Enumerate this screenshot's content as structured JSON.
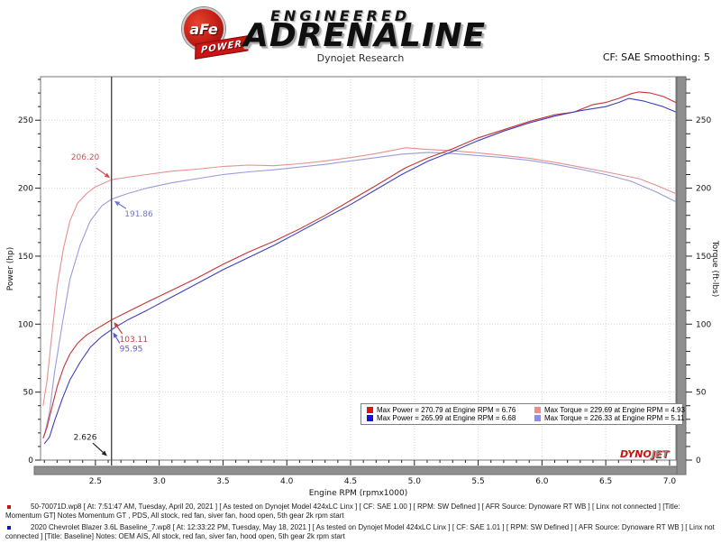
{
  "header": {
    "badge_top": "aFe",
    "badge_banner": "POWER",
    "brand_line1": "ENGINEERED",
    "brand_line2": "ADRENALINE",
    "subtitle": "Dynojet Research",
    "smoothing_label": "CF: SAE Smoothing: 5"
  },
  "chart_data": {
    "type": "line",
    "xlabel": "Engine RPM (rpmx1000)",
    "ylabel_left": "Power (hp)",
    "ylabel_right": "Torque (ft-lbs)",
    "xlim": [
      2.07,
      7.05
    ],
    "ylim": [
      0,
      282
    ],
    "x_major_ticks": [
      2.5,
      3.0,
      3.5,
      4.0,
      4.5,
      5.0,
      5.5,
      6.0,
      6.5,
      7.0
    ],
    "x_minor_step": 0.1,
    "y_major_ticks": [
      0,
      50,
      100,
      150,
      200,
      250
    ],
    "y_minor_step": 10,
    "grid": "dotted",
    "legend_position": "bottom-center-inside",
    "cursor_rpm": 2.626,
    "cursor_values": {
      "power_red": 103.11,
      "power_blue": 95.95,
      "torque_red": 206.2,
      "torque_blue": 191.86
    },
    "series": [
      {
        "name": "torque-momentum-gt",
        "axis": "right",
        "color": "#e49090",
        "x": [
          2.09,
          2.12,
          2.16,
          2.2,
          2.25,
          2.3,
          2.36,
          2.43,
          2.5,
          2.626,
          2.75,
          2.9,
          3.1,
          3.3,
          3.5,
          3.7,
          3.9,
          4.1,
          4.3,
          4.5,
          4.7,
          4.93,
          5.1,
          5.3,
          5.5,
          5.7,
          5.9,
          6.1,
          6.3,
          6.5,
          6.76,
          6.9,
          7.05
        ],
        "y": [
          40,
          58,
          93,
          128,
          156,
          176,
          189,
          196,
          201,
          206.2,
          208,
          210,
          212.5,
          214,
          216,
          217,
          216.5,
          218,
          220,
          222.5,
          225.5,
          229.69,
          228.5,
          227.5,
          226,
          224,
          222,
          219,
          215.5,
          212,
          207,
          202,
          196
        ]
      },
      {
        "name": "torque-baseline",
        "axis": "right",
        "color": "#9a9ade",
        "x": [
          2.1,
          2.14,
          2.18,
          2.24,
          2.3,
          2.38,
          2.46,
          2.55,
          2.626,
          2.75,
          2.9,
          3.1,
          3.3,
          3.5,
          3.7,
          3.9,
          4.1,
          4.3,
          4.5,
          4.7,
          4.9,
          5.11,
          5.3,
          5.5,
          5.7,
          5.9,
          6.1,
          6.3,
          6.5,
          6.7,
          6.9,
          7.05
        ],
        "y": [
          18,
          35,
          65,
          100,
          133,
          158,
          176,
          187,
          191.86,
          196,
          200,
          204,
          207,
          210,
          212,
          213.5,
          215.5,
          217.5,
          220,
          222.5,
          225,
          226.33,
          225.5,
          224,
          222.5,
          220.5,
          217.5,
          214,
          210,
          205,
          197,
          190
        ]
      },
      {
        "name": "power-momentum-gt",
        "axis": "left",
        "color": "#c63434",
        "x": [
          2.09,
          2.12,
          2.16,
          2.2,
          2.25,
          2.3,
          2.36,
          2.43,
          2.5,
          2.626,
          2.75,
          2.9,
          3.1,
          3.3,
          3.5,
          3.7,
          3.9,
          4.1,
          4.3,
          4.5,
          4.7,
          4.93,
          5.1,
          5.3,
          5.5,
          5.7,
          5.9,
          6.1,
          6.25,
          6.4,
          6.5,
          6.6,
          6.7,
          6.76,
          6.85,
          6.95,
          7.05
        ],
        "y": [
          16,
          24,
          39,
          54,
          68,
          78,
          86,
          92,
          96,
          103.11,
          109,
          116,
          125,
          134,
          144,
          153,
          161,
          170,
          180,
          191,
          202,
          215,
          222,
          229,
          237,
          243,
          249,
          254,
          256,
          261.5,
          263,
          266,
          269.5,
          270.79,
          270,
          267.5,
          263
        ]
      },
      {
        "name": "power-baseline",
        "axis": "left",
        "color": "#4040bc",
        "x": [
          2.1,
          2.14,
          2.18,
          2.24,
          2.3,
          2.38,
          2.46,
          2.55,
          2.626,
          2.75,
          2.9,
          3.1,
          3.3,
          3.5,
          3.7,
          3.9,
          4.1,
          4.3,
          4.5,
          4.7,
          4.9,
          5.11,
          5.3,
          5.5,
          5.7,
          5.9,
          6.1,
          6.3,
          6.5,
          6.6,
          6.68,
          6.8,
          6.95,
          7.05
        ],
        "y": [
          12,
          17,
          29,
          45,
          59,
          72,
          83,
          91,
          95.95,
          103,
          110,
          120,
          130,
          140,
          149,
          158,
          168,
          178,
          188,
          199,
          210,
          220,
          227,
          235,
          242,
          248,
          253,
          257,
          260,
          263,
          265.99,
          264,
          260,
          256
        ]
      }
    ],
    "annotations": [
      {
        "text": "206.20",
        "color": "#d25252",
        "tx": 2.42,
        "ty": 223,
        "x1": 2.505,
        "y1": 215,
        "x2": 2.615,
        "y2": 207.5
      },
      {
        "text": "191.86",
        "color": "#7474d2",
        "tx": 2.84,
        "ty": 181,
        "x1": 2.74,
        "y1": 185,
        "x2": 2.648,
        "y2": 190.5
      },
      {
        "text": "103.11",
        "color": "#c84040",
        "tx": 2.8,
        "ty": 89,
        "x1": 2.71,
        "y1": 93,
        "x2": 2.645,
        "y2": 101.5
      },
      {
        "text": "95.95",
        "color": "#5c5cc8",
        "tx": 2.78,
        "ty": 82,
        "x1": 2.69,
        "y1": 86,
        "x2": 2.638,
        "y2": 94
      },
      {
        "text": "2.626",
        "color": "#222222",
        "tx": 2.42,
        "ty": 17,
        "x1": 2.48,
        "y1": 12.5,
        "x2": 2.592,
        "y2": 3
      }
    ],
    "legend": [
      {
        "swatch": "#e81010",
        "label": "Max Power = 270.79 at Engine RPM = 6.76"
      },
      {
        "swatch": "#f28c8c",
        "label": "Max Torque = 229.69 at Engine RPM = 4.93"
      },
      {
        "swatch": "#1414cc",
        "label": "Max Power = 265.99 at Engine RPM = 6.68"
      },
      {
        "swatch": "#8c8cf2",
        "label": "Max Torque = 226.33 at Engine RPM = 5.11"
      }
    ],
    "watermark": {
      "dyno": "DYNO",
      "jet": "JET"
    }
  },
  "footnotes": [
    {
      "color": "#cc1111",
      "text": "50-70071D.wp8 [ At: 7:51:47 AM, Tuesday, April 20, 2021 ] [ As tested on Dynojet Model 424xLC Linx ] [ CF: SAE 1.00 ] [ RPM: SW Defined ] [ AFR Source: Dynoware RT WB ] [ Linx not connected ] [Title: Momentum GT]  Notes  Momentum GT , PDS, All stock, red fan, siver fan, hood open, 5th gear 2k rpm start"
    },
    {
      "color": "#1111cc",
      "text": "2020 Chevrolet Blazer 3.6L Baseline_7.wp8 [ At: 12:33:22 PM, Tuesday, May 18, 2021 ] [ As tested on Dynojet Model 424xLC Linx ] [ CF: SAE 1.01 ] [ RPM: SW Defined ] [ AFR Source: Dynoware RT WB ] [ Linx not connected ] [Title: Baseline]  Notes: OEM AIS, All stock, red fan, siver fan, hood open, 5th gear 2k rpm start"
    }
  ]
}
